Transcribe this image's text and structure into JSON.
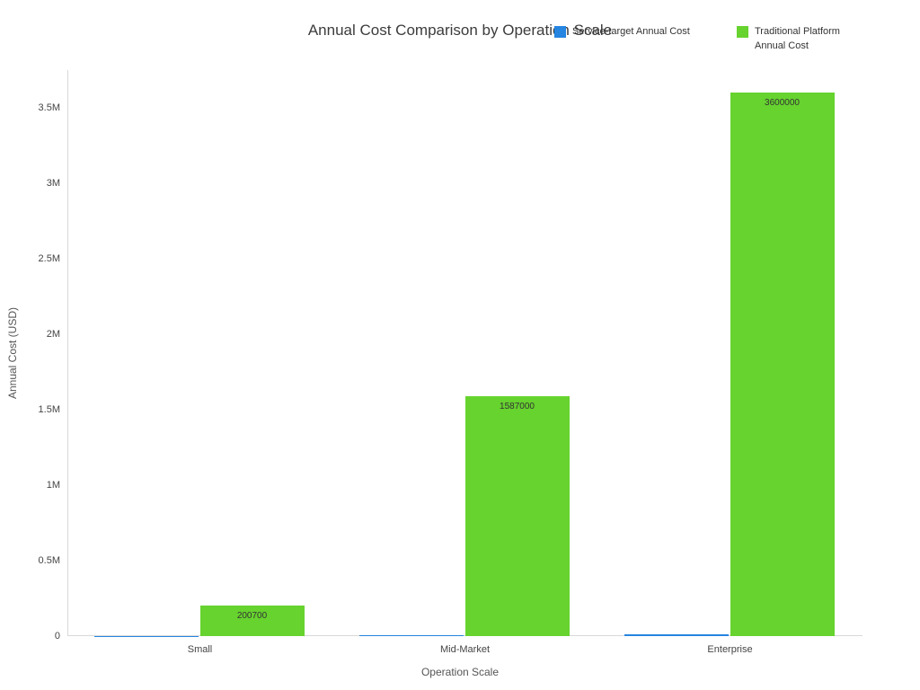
{
  "chart_data": {
    "type": "bar",
    "title": "Annual Cost Comparison by Operation Scale",
    "xlabel": "Operation Scale",
    "ylabel": "Annual Cost (USD)",
    "categories": [
      "Small",
      "Mid-Market",
      "Enterprise"
    ],
    "series": [
      {
        "name": "Service-target Annual Cost",
        "color": "#2585e0",
        "values": [
          1000,
          4000,
          12000
        ],
        "show_labels": false,
        "data_labels": [
          "",
          "",
          ""
        ]
      },
      {
        "name": "Traditional Platform Annual Cost",
        "color": "#66d32e",
        "values": [
          200700,
          1587000,
          3600000
        ],
        "show_labels": true,
        "data_labels": [
          "200700",
          "1587000",
          "3600000"
        ]
      }
    ],
    "ylim": [
      0,
      3750000
    ],
    "yticks": [
      0,
      500000,
      1000000,
      1500000,
      2000000,
      2500000,
      3000000,
      3500000
    ],
    "ytick_labels": [
      "0",
      "0.5M",
      "1M",
      "1.5M",
      "2M",
      "2.5M",
      "3M",
      "3.5M"
    ],
    "grid": false,
    "legend_position": "top-right",
    "background": "#ffffff"
  }
}
